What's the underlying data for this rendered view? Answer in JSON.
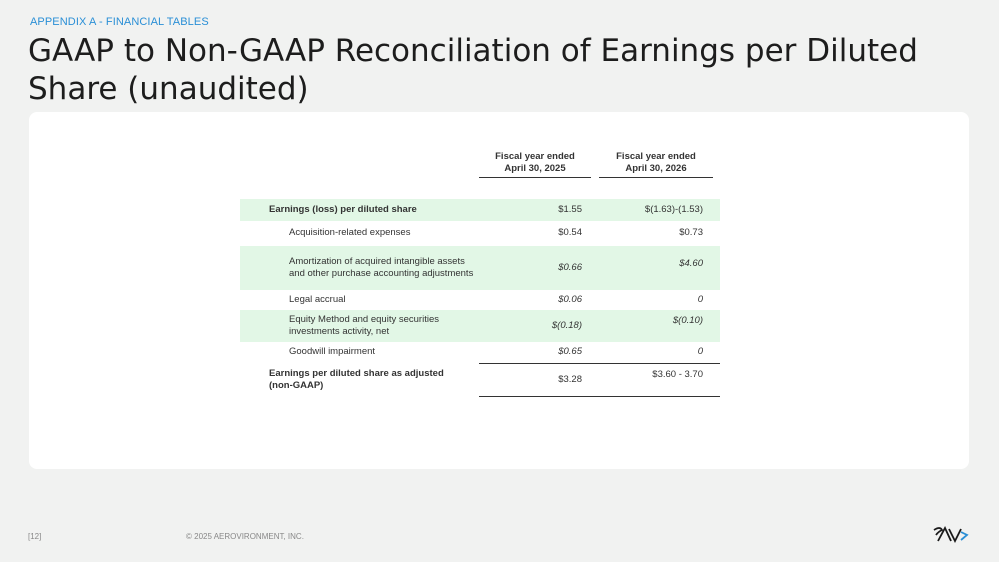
{
  "header": {
    "kicker": "APPENDIX A - FINANCIAL TABLES",
    "title": "GAAP to Non-GAAP Reconciliation of Earnings per Diluted Share (unaudited)"
  },
  "table": {
    "col1_header": "Fiscal year ended\nApril 30, 2025",
    "col2_header": "Fiscal year ended\nApril 30, 2026",
    "rows": [
      {
        "label": "Earnings (loss) per diluted share",
        "v1": "$1.55",
        "v2": "$(1.63)-(1.53)"
      },
      {
        "label": "Acquisition-related expenses",
        "v1": "$0.54",
        "v2": "$0.73"
      },
      {
        "label": "Amortization of acquired intangible assets and other purchase accounting adjustments",
        "v1": "$0.66",
        "v2": "$4.60"
      },
      {
        "label": "Legal accrual",
        "v1": "$0.06",
        "v2": "0"
      },
      {
        "label": "Equity Method and equity securities investments activity, net",
        "v1": "$(0.18)",
        "v2": "$(0.10)"
      },
      {
        "label": "Goodwill impairment",
        "v1": "$0.65",
        "v2": "0"
      },
      {
        "label": "Earnings per diluted share as adjusted (non-GAAP)",
        "v1": "$3.28",
        "v2": "$3.60 - 3.70"
      }
    ]
  },
  "footer": {
    "page": "[12]",
    "copyright": "© 2025 AEROVIRONMENT, INC.",
    "logo_icon": "av-logo-icon"
  }
}
